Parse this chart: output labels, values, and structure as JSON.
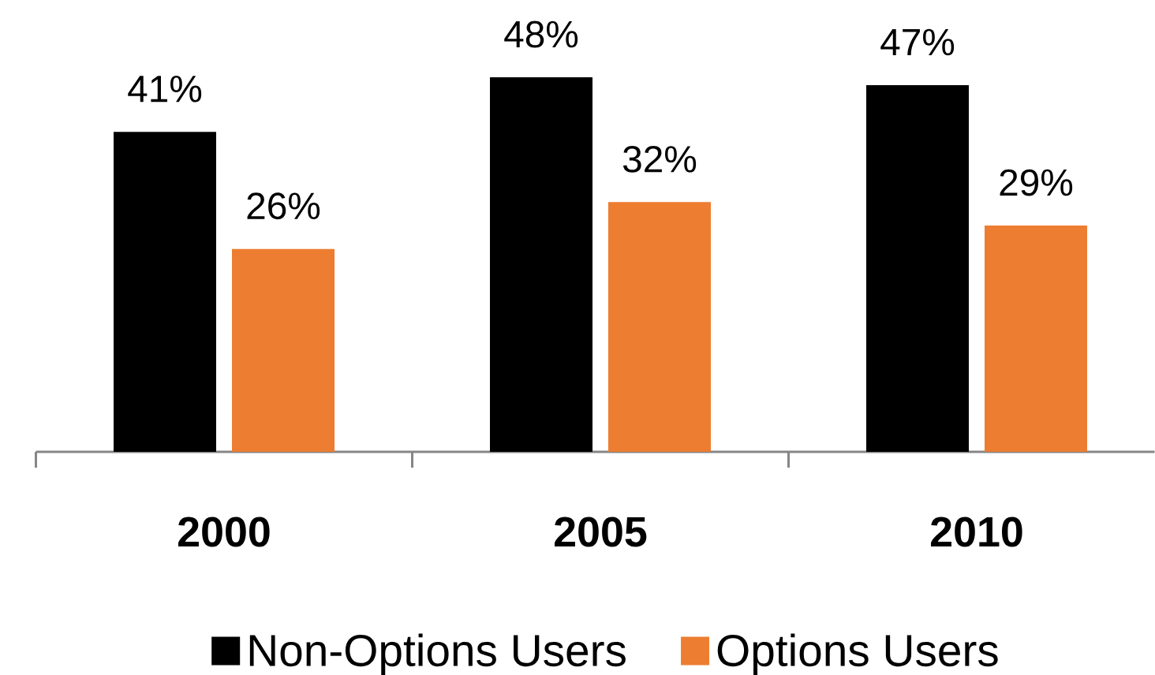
{
  "chart_data": {
    "type": "bar",
    "categories": [
      "2000",
      "2005",
      "2010"
    ],
    "series": [
      {
        "name": "Non-Options Users",
        "color": "#000000",
        "values": [
          41,
          48,
          47
        ],
        "value_labels": [
          "41%",
          "48%",
          "47%"
        ]
      },
      {
        "name": "Options Users",
        "color": "#ed7d31",
        "values": [
          26,
          32,
          29
        ],
        "value_labels": [
          "26%",
          "32%",
          "29%"
        ]
      }
    ],
    "legend": "bottom"
  }
}
